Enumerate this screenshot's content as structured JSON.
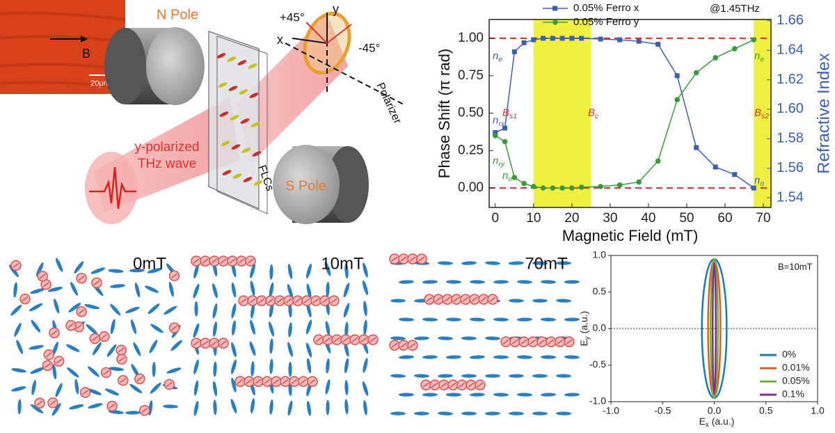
{
  "micrograph": {
    "field_label": "B",
    "scale_label": "20μm"
  },
  "setup": {
    "n_pole": "N Pole",
    "s_pole": "S Pole",
    "wave_label": [
      "y-polarized",
      "THz wave"
    ],
    "sample_label": "FLCs",
    "polarizer_label": "Polarizer",
    "axis_x": "x",
    "axis_y": "y",
    "angle_plus": "+45°",
    "angle_minus": "-45°"
  },
  "alignment_panels": [
    {
      "label": "0mT"
    },
    {
      "label": "10mT"
    },
    {
      "label": "70mT"
    }
  ],
  "chart_data": [
    {
      "type": "line",
      "x_label": "Magnetic Field (mT)",
      "y_label": "Phase Shift (π rad)",
      "y2_label": "Refractive Index",
      "annotation": "@1.45THz",
      "x": [
        0,
        2.5,
        5,
        7.5,
        10,
        12.5,
        15,
        17.5,
        20,
        22.5,
        27.5,
        32.5,
        37.5,
        42.5,
        47.5,
        52.5,
        57.5,
        62.5,
        67.5
      ],
      "series": [
        {
          "name": "0.05% Ferro x",
          "color": "#3a5fb0",
          "marker": "square",
          "values": [
            0.37,
            0.4,
            0.91,
            0.97,
            0.99,
            1.0,
            1.0,
            1.0,
            1.0,
            1.0,
            0.995,
            0.99,
            0.98,
            0.96,
            0.75,
            0.27,
            0.14,
            0.09,
            0.0
          ]
        },
        {
          "name": "0.05% Ferro y",
          "color": "#3a9a3a",
          "marker": "circle",
          "values": [
            0.35,
            0.31,
            0.07,
            0.03,
            0.01,
            0.0,
            0.0,
            0.0,
            0.0,
            0.005,
            0.01,
            0.02,
            0.04,
            0.18,
            0.59,
            0.77,
            0.87,
            0.93,
            0.99
          ]
        }
      ],
      "xlim": [
        -1.6,
        72
      ],
      "xticks": [
        0,
        10,
        20,
        30,
        40,
        50,
        60,
        70
      ],
      "ylim": [
        -0.13,
        1.1256
      ],
      "yticks": [
        {
          "value": 0,
          "label": "0.00"
        },
        0.25,
        {
          "value": 0.5,
          "label": "0.50"
        },
        0.75,
        {
          "value": 1,
          "label": "1.00"
        }
      ],
      "y2lim": [
        1.5334,
        1.6609
      ],
      "y2ticks": [
        1.54,
        1.56,
        1.58,
        {
          "value": 1.6,
          "label": "1.60"
        },
        1.62,
        1.64,
        1.66
      ],
      "reference_lines": [
        0,
        1
      ],
      "reference_color": "#e03030",
      "highlight_ranges": [
        [
          10,
          25
        ],
        [
          67.5,
          72
        ]
      ],
      "highlight_color": "#f0f040",
      "point_labels": [
        {
          "text": "n",
          "sub": "rx",
          "color": "#3a5fb0"
        },
        {
          "text": "n",
          "sub": "ry",
          "color": "#3a9a3a"
        },
        {
          "text": "n",
          "sub": "e",
          "color": "#3a5fb0"
        },
        {
          "text": "n",
          "sub": "o",
          "color": "#3a9a3a"
        },
        {
          "text": "B",
          "sub": "s1",
          "color": "#e03030"
        },
        {
          "text": "B",
          "sub": "c",
          "color": "#e03030"
        },
        {
          "text": "B",
          "sub": "s2",
          "color": "#e03030"
        },
        {
          "text": "n",
          "sub": "e",
          "color": "#3a9a3a"
        },
        {
          "text": "n",
          "sub": "o",
          "color": "#3a5fb0"
        }
      ]
    },
    {
      "type": "ellipse",
      "annotation": "B=10mT",
      "x_label": {
        "text": "E",
        "sub": "x",
        "unit": " (a.u.)"
      },
      "y_label": {
        "text": "E",
        "sub": "y",
        "unit": " (a.u.)"
      },
      "xlim": [
        -1,
        1
      ],
      "ylim": [
        -1,
        1
      ],
      "xticks": [
        {
          "value": -1,
          "label": "-1.0"
        },
        -0.5,
        {
          "value": 0,
          "label": "0.0"
        },
        0.5,
        {
          "value": 1,
          "label": "1.0"
        }
      ],
      "yticks": [
        {
          "value": -1,
          "label": "-1.0"
        },
        -0.5,
        {
          "value": 0,
          "label": "0.0"
        },
        0.5,
        {
          "value": 1,
          "label": "1.0"
        }
      ],
      "reference_lines": [
        0
      ],
      "legend": "lower right",
      "series": [
        {
          "name": "0%",
          "color": "#1f77b4",
          "rx": 0.12,
          "ry": 0.95
        },
        {
          "name": "0.01%",
          "color": "#d2622a",
          "rx": 0.06,
          "ry": 0.93
        },
        {
          "name": "0.05%",
          "color": "#77ac30",
          "rx": 0.035,
          "ry": 0.95
        },
        {
          "name": "0.1%",
          "color": "#7e2f8e",
          "rx": 0.015,
          "ry": 0.9
        }
      ]
    }
  ]
}
